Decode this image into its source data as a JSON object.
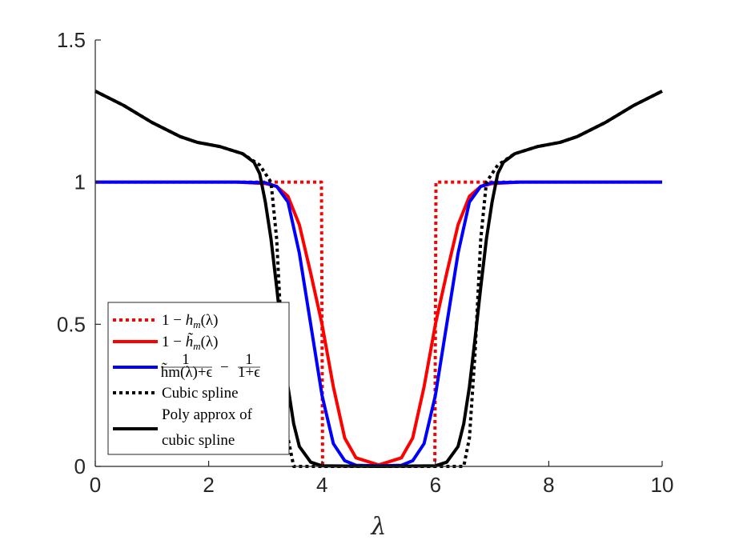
{
  "chart_data": {
    "type": "line",
    "xlabel": "λ",
    "ylabel": "",
    "xlim": [
      0,
      10
    ],
    "ylim": [
      0,
      1.5
    ],
    "xticks": [
      0,
      2,
      4,
      6,
      8,
      10
    ],
    "xtick_labels": [
      "0",
      "2",
      "4",
      "6",
      "8",
      "10"
    ],
    "yticks": [
      0,
      0.5,
      1,
      1.5
    ],
    "ytick_labels": [
      "0",
      "0.5",
      "1",
      "1.5"
    ],
    "grid": false,
    "legend_placement": "lower-left",
    "series": [
      {
        "name": "1 − h_m(λ)",
        "color": "#ff0000",
        "style": "dotted",
        "x": [
          0,
          3.99,
          4.0,
          4.01,
          5.99,
          6.0,
          6.01,
          10
        ],
        "y": [
          1,
          1,
          0.5,
          0,
          0,
          0.5,
          1,
          1
        ]
      },
      {
        "name": "1 − h̃_m(λ)",
        "color": "#ff0000",
        "style": "solid",
        "x": [
          0,
          2.5,
          3.0,
          3.2,
          3.4,
          3.6,
          3.8,
          4.0,
          4.2,
          4.4,
          4.6,
          5.0,
          5.4,
          5.6,
          5.8,
          6.0,
          6.2,
          6.4,
          6.6,
          6.8,
          7.0,
          7.5,
          10
        ],
        "y": [
          1,
          1,
          0.995,
          0.985,
          0.95,
          0.85,
          0.68,
          0.5,
          0.28,
          0.1,
          0.03,
          0.005,
          0.03,
          0.1,
          0.28,
          0.5,
          0.68,
          0.85,
          0.95,
          0.985,
          0.995,
          1,
          1
        ]
      },
      {
        "name": "1/(h̃_m(λ)+ε) − 1/(1+ε)",
        "color": "#0000ff",
        "style": "solid",
        "x": [
          0,
          2.5,
          3.0,
          3.2,
          3.4,
          3.6,
          3.8,
          4.0,
          4.2,
          4.4,
          4.6,
          5.0,
          5.4,
          5.6,
          5.8,
          6.0,
          6.2,
          6.4,
          6.6,
          6.8,
          7.0,
          7.5,
          10
        ],
        "y": [
          1,
          1,
          0.998,
          0.985,
          0.93,
          0.75,
          0.5,
          0.25,
          0.08,
          0.02,
          0.004,
          0.002,
          0.004,
          0.02,
          0.08,
          0.25,
          0.5,
          0.75,
          0.93,
          0.985,
          0.998,
          1,
          1
        ]
      },
      {
        "name": "Cubic spline",
        "color": "#000000",
        "style": "dotted",
        "x": [
          0,
          0.5,
          1.0,
          1.5,
          1.8,
          2.2,
          2.6,
          2.9,
          3.1,
          3.2,
          3.3,
          3.4,
          3.5,
          6.5,
          6.6,
          6.7,
          6.8,
          6.9,
          7.1,
          7.4,
          7.8,
          8.2,
          8.5,
          9.0,
          9.5,
          10
        ],
        "y": [
          1.32,
          1.27,
          1.21,
          1.16,
          1.14,
          1.125,
          1.1,
          1.06,
          1.0,
          0.8,
          0.4,
          0.1,
          0.0,
          0.0,
          0.1,
          0.4,
          0.8,
          1.0,
          1.06,
          1.1,
          1.125,
          1.14,
          1.16,
          1.21,
          1.27,
          1.32
        ]
      },
      {
        "name": "Poly approx of cubic spline",
        "color": "#000000",
        "style": "solid",
        "x": [
          0,
          0.5,
          1.0,
          1.5,
          1.8,
          2.2,
          2.6,
          2.8,
          2.9,
          3.0,
          3.1,
          3.2,
          3.3,
          3.4,
          3.5,
          3.6,
          3.8,
          4.0,
          5.0,
          6.0,
          6.2,
          6.4,
          6.5,
          6.6,
          6.7,
          6.8,
          6.9,
          7.0,
          7.1,
          7.2,
          7.4,
          7.8,
          8.2,
          8.5,
          9.0,
          9.5,
          10
        ],
        "y": [
          1.32,
          1.27,
          1.21,
          1.16,
          1.14,
          1.125,
          1.1,
          1.07,
          1.03,
          0.93,
          0.8,
          0.63,
          0.45,
          0.28,
          0.15,
          0.07,
          0.015,
          0.002,
          0.0,
          0.002,
          0.015,
          0.07,
          0.15,
          0.28,
          0.45,
          0.63,
          0.8,
          0.93,
          1.03,
          1.07,
          1.1,
          1.125,
          1.14,
          1.16,
          1.21,
          1.27,
          1.32
        ]
      }
    ]
  },
  "legend": {
    "entry1": {
      "pre": "1 − ",
      "h": "h",
      "sub": "m",
      "post": "(λ)"
    },
    "entry2": {
      "pre": "1 − ",
      "h": "h̃",
      "sub": "m",
      "post": "(λ)"
    },
    "entry3": {
      "num1": "1",
      "den1": "h̃m(λ)+ϵ",
      "minus": "−",
      "num2": "1",
      "den2": "1+ϵ"
    },
    "entry4": "Cubic spline",
    "entry5_line1": "Poly approx of",
    "entry5_line2": "cubic spline"
  }
}
